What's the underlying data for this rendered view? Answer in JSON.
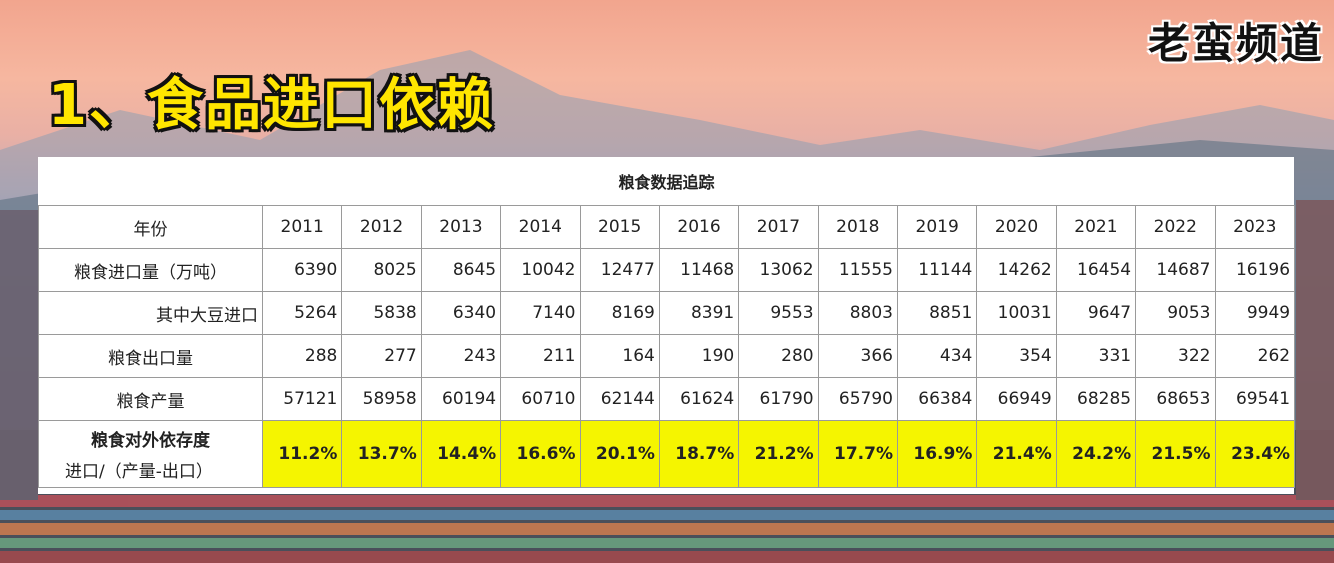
{
  "channel": "老蛮频道",
  "heading": "1、食品进口依赖",
  "table": {
    "title": "粮食数据追踪",
    "header_label": "年份",
    "years": [
      "2011",
      "2012",
      "2013",
      "2014",
      "2015",
      "2016",
      "2017",
      "2018",
      "2019",
      "2020",
      "2021",
      "2022",
      "2023"
    ],
    "rows": [
      {
        "label": "粮食进口量（万吨）",
        "values": [
          "6390",
          "8025",
          "8645",
          "10042",
          "12477",
          "11468",
          "13062",
          "11555",
          "11144",
          "14262",
          "16454",
          "14687",
          "16196"
        ]
      },
      {
        "label": "其中大豆进口",
        "values": [
          "5264",
          "5838",
          "6340",
          "7140",
          "8169",
          "8391",
          "9553",
          "8803",
          "8851",
          "10031",
          "9647",
          "9053",
          "9949"
        ]
      },
      {
        "label": "粮食出口量",
        "values": [
          "288",
          "277",
          "243",
          "211",
          "164",
          "190",
          "280",
          "366",
          "434",
          "354",
          "331",
          "322",
          "262"
        ]
      },
      {
        "label": "粮食产量",
        "values": [
          "57121",
          "58958",
          "60194",
          "60710",
          "62144",
          "61624",
          "61790",
          "65790",
          "66384",
          "66949",
          "68285",
          "68653",
          "69541"
        ]
      }
    ],
    "ratio_row": {
      "label": "粮食对外依存度",
      "sublabel": "进口/（产量-出口）",
      "values": [
        "11.2%",
        "13.7%",
        "14.4%",
        "16.6%",
        "20.1%",
        "18.7%",
        "21.2%",
        "17.7%",
        "16.9%",
        "21.4%",
        "24.2%",
        "21.5%",
        "23.4%"
      ]
    },
    "colors": {
      "highlight": "#f5f500",
      "grid": "#9a9a9a"
    }
  }
}
